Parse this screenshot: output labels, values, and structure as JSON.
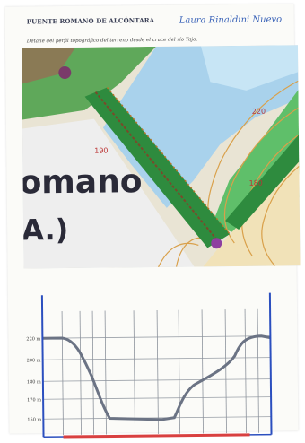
{
  "header": {
    "title": "PUENTE ROMANO DE ALCÓNTARA",
    "author": "Laura Rinaldini Nuevo",
    "subtitle": "Detalle del perfil topográfico del terreno desde el cruce del río Tajo."
  },
  "map": {
    "text_big": "omano",
    "text_small": "A.)",
    "contour_labels": [
      "220",
      "180",
      "190"
    ]
  },
  "profile": {
    "y_labels": [
      "220 m",
      "200 m",
      "180 m",
      "170 m",
      "150 m"
    ]
  },
  "colors": {
    "road": "#2e8b3e",
    "water": "#9cc9e6",
    "contour": "#d9a04a",
    "axis": "#2b4fbf",
    "baseline": "#d94040",
    "profile_line": "#6b7384"
  }
}
